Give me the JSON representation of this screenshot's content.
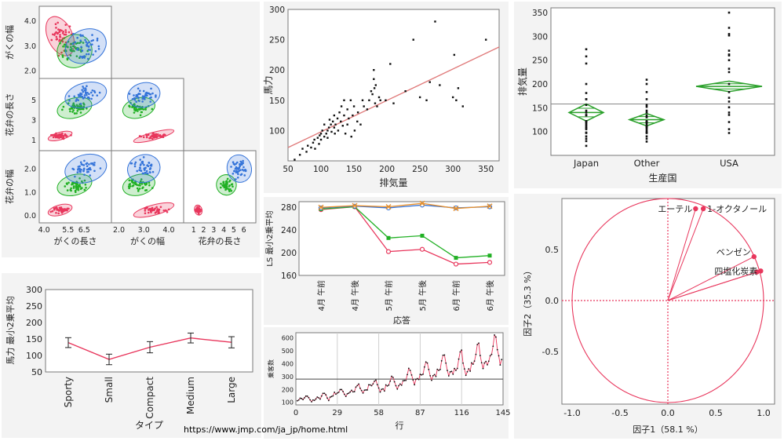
{
  "source_url": "https://www.jmp.com/ja_jp/home.html",
  "colors": {
    "red": "#e8365c",
    "green": "#21b024",
    "blue": "#3574d9",
    "fitline": "#e07a7a",
    "diamond": "#2aa02a",
    "orange": "#e8902c"
  },
  "chart_data": [
    {
      "id": "scatter-matrix",
      "type": "scatter",
      "cells": [
        {
          "row": 0,
          "col": 0,
          "x_var": "がくの長さ",
          "y_var": "がくの幅",
          "series": [
            {
              "color": "red",
              "cx": 5.0,
              "cy": 3.4,
              "sx": 0.35,
              "sy": 0.38,
              "n": 45
            },
            {
              "color": "green",
              "cx": 5.9,
              "cy": 2.8,
              "sx": 0.5,
              "sy": 0.3,
              "n": 45
            },
            {
              "color": "blue",
              "cx": 6.6,
              "cy": 3.0,
              "sx": 0.6,
              "sy": 0.3,
              "n": 45
            }
          ]
        },
        {
          "row": 1,
          "col": 0,
          "x_var": "がくの長さ",
          "y_var": "花弁の長さ",
          "series": [
            {
              "color": "red",
              "cx": 5.0,
              "cy": 1.46,
              "sx": 0.35,
              "sy": 0.17,
              "n": 45
            },
            {
              "color": "green",
              "cx": 5.9,
              "cy": 4.26,
              "sx": 0.5,
              "sy": 0.45,
              "n": 45
            },
            {
              "color": "blue",
              "cx": 6.6,
              "cy": 5.55,
              "sx": 0.6,
              "sy": 0.55,
              "n": 45
            }
          ]
        },
        {
          "row": 1,
          "col": 1,
          "x_var": "がくの幅",
          "y_var": "花弁の長さ",
          "series": [
            {
              "color": "red",
              "cx": 3.4,
              "cy": 1.46,
              "sx": 0.38,
              "sy": 0.17,
              "n": 45
            },
            {
              "color": "green",
              "cx": 2.8,
              "cy": 4.26,
              "sx": 0.3,
              "sy": 0.45,
              "n": 45
            },
            {
              "color": "blue",
              "cx": 3.0,
              "cy": 5.55,
              "sx": 0.3,
              "sy": 0.55,
              "n": 45
            }
          ]
        },
        {
          "row": 2,
          "col": 0,
          "x_var": "がくの長さ",
          "y_var": "花弁の幅",
          "series": [
            {
              "color": "red",
              "cx": 5.0,
              "cy": 0.25,
              "sx": 0.35,
              "sy": 0.1,
              "n": 45
            },
            {
              "color": "green",
              "cx": 5.9,
              "cy": 1.33,
              "sx": 0.5,
              "sy": 0.2,
              "n": 45
            },
            {
              "color": "blue",
              "cx": 6.6,
              "cy": 2.03,
              "sx": 0.6,
              "sy": 0.27,
              "n": 45
            }
          ]
        },
        {
          "row": 2,
          "col": 1,
          "x_var": "がくの幅",
          "y_var": "花弁の幅",
          "series": [
            {
              "color": "red",
              "cx": 3.4,
              "cy": 0.25,
              "sx": 0.38,
              "sy": 0.1,
              "n": 45
            },
            {
              "color": "green",
              "cx": 2.8,
              "cy": 1.33,
              "sx": 0.3,
              "sy": 0.2,
              "n": 45
            },
            {
              "color": "blue",
              "cx": 3.0,
              "cy": 2.03,
              "sx": 0.3,
              "sy": 0.27,
              "n": 45
            }
          ]
        },
        {
          "row": 2,
          "col": 2,
          "x_var": "花弁の長さ",
          "y_var": "花弁の幅",
          "series": [
            {
              "color": "red",
              "cx": 1.46,
              "cy": 0.25,
              "sx": 0.17,
              "sy": 0.1,
              "n": 45
            },
            {
              "color": "green",
              "cx": 4.26,
              "cy": 1.33,
              "sx": 0.45,
              "sy": 0.2,
              "n": 45
            },
            {
              "color": "blue",
              "cx": 5.55,
              "cy": 2.03,
              "sx": 0.55,
              "sy": 0.27,
              "n": 45
            }
          ]
        }
      ],
      "col_vars": [
        "がくの長さ",
        "がくの幅",
        "花弁の長さ"
      ],
      "row_vars": [
        "がくの幅",
        "花弁の長さ",
        "花弁の幅"
      ],
      "ranges": {
        "がくの長さ": [
          3.7,
          8.2
        ],
        "がくの幅": [
          1.7,
          4.6
        ],
        "花弁の長さ": [
          0,
          7.2
        ],
        "花弁の幅": [
          -0.3,
          2.8
        ]
      },
      "col_ticks": [
        [
          "4.0",
          "5.5",
          "6.5"
        ],
        [
          "2.0",
          "3.0",
          "4.0"
        ],
        [
          "1",
          "2",
          "3",
          "4",
          "5",
          "6"
        ]
      ],
      "col_tick_values": [
        [
          4.0,
          5.5,
          6.5
        ],
        [
          2.0,
          3.0,
          4.0
        ],
        [
          1,
          2,
          3,
          4,
          5,
          6
        ]
      ],
      "row_ticks": [
        [
          "4.0",
          "3.0",
          "2.0"
        ],
        [
          "5",
          "3",
          "1"
        ],
        [
          "2.0",
          "1.0",
          "0.0"
        ]
      ],
      "row_tick_values": [
        [
          4.0,
          3.0,
          2.0
        ],
        [
          5,
          3,
          1
        ],
        [
          2.0,
          1.0,
          0.0
        ]
      ]
    },
    {
      "id": "hp-vs-displacement",
      "type": "scatter",
      "xlabel": "排気量",
      "ylabel": "馬力",
      "xlim": [
        50,
        370
      ],
      "ylim": [
        50,
        300
      ],
      "xticks": [
        50,
        100,
        150,
        200,
        250,
        300,
        350
      ],
      "yticks": [
        100,
        150,
        200,
        250,
        300
      ],
      "fit_line": [
        [
          50,
          72
        ],
        [
          370,
          238
        ]
      ],
      "points": [
        [
          60,
          52
        ],
        [
          68,
          60
        ],
        [
          72,
          70
        ],
        [
          78,
          65
        ],
        [
          80,
          75
        ],
        [
          85,
          72
        ],
        [
          88,
          80
        ],
        [
          90,
          85
        ],
        [
          91,
          70
        ],
        [
          95,
          88
        ],
        [
          97,
          78
        ],
        [
          98,
          92
        ],
        [
          100,
          95
        ],
        [
          100,
          85
        ],
        [
          102,
          100
        ],
        [
          105,
          90
        ],
        [
          105,
          110
        ],
        [
          108,
          95
        ],
        [
          110,
          100
        ],
        [
          110,
          88
        ],
        [
          112,
          105
        ],
        [
          113,
          118
        ],
        [
          115,
          110
        ],
        [
          116,
          98
        ],
        [
          118,
          115
        ],
        [
          120,
          125
        ],
        [
          120,
          105
        ],
        [
          121,
          95
        ],
        [
          122,
          110
        ],
        [
          125,
          120
        ],
        [
          126,
          100
        ],
        [
          128,
          130
        ],
        [
          130,
          115
        ],
        [
          131,
          140
        ],
        [
          133,
          108
        ],
        [
          135,
          125
        ],
        [
          135,
          150
        ],
        [
          137,
          95
        ],
        [
          140,
          135
        ],
        [
          140,
          110
        ],
        [
          142,
          120
        ],
        [
          145,
          150
        ],
        [
          146,
          90
        ],
        [
          148,
          125
        ],
        [
          150,
          140
        ],
        [
          151,
          100
        ],
        [
          155,
          115
        ],
        [
          156,
          130
        ],
        [
          160,
          110
        ],
        [
          163,
          150
        ],
        [
          165,
          140
        ],
        [
          170,
          135
        ],
        [
          173,
          150
        ],
        [
          176,
          165
        ],
        [
          178,
          160
        ],
        [
          180,
          185
        ],
        [
          180,
          200
        ],
        [
          181,
          170
        ],
        [
          182,
          145
        ],
        [
          183,
          175
        ],
        [
          185,
          140
        ],
        [
          188,
          155
        ],
        [
          190,
          150
        ],
        [
          198,
          150
        ],
        [
          205,
          210
        ],
        [
          210,
          145
        ],
        [
          228,
          165
        ],
        [
          240,
          250
        ],
        [
          250,
          155
        ],
        [
          260,
          150
        ],
        [
          265,
          180
        ],
        [
          273,
          280
        ],
        [
          280,
          175
        ],
        [
          300,
          155
        ],
        [
          302,
          225
        ],
        [
          305,
          150
        ],
        [
          308,
          170
        ],
        [
          315,
          140
        ],
        [
          350,
          250
        ]
      ]
    },
    {
      "id": "displacement-by-origin",
      "type": "scatter",
      "xlabel": "生産国",
      "ylabel": "排気量",
      "categories": [
        "Japan",
        "Other",
        "USA"
      ],
      "ylim": [
        50,
        360
      ],
      "yticks": [
        100,
        150,
        200,
        250,
        300,
        350
      ],
      "grand_mean": 158,
      "means": [
        140,
        125,
        195
      ],
      "ci": [
        [
          122,
          158
        ],
        [
          112,
          138
        ],
        [
          184,
          206
        ]
      ],
      "points": [
        [
          70,
          80,
          85,
          90,
          97,
          98,
          105,
          107,
          110,
          113,
          116,
          119,
          121,
          122,
          134,
          135,
          140,
          144,
          156,
          168,
          168,
          181,
          200,
          243,
          258,
          273
        ],
        [
          79,
          85,
          90,
          97,
          98,
          101,
          105,
          108,
          110,
          112,
          116,
          119,
          120,
          121,
          122,
          130,
          131,
          134,
          140,
          144,
          152,
          156,
          168,
          183,
          200,
          209
        ],
        [
          97,
          105,
          120,
          135,
          140,
          151,
          163,
          171,
          183,
          200,
          225,
          232,
          250,
          260,
          262,
          270,
          302,
          305,
          318,
          350
        ]
      ]
    },
    {
      "id": "lsmeans-by-type",
      "type": "line",
      "xlabel": "タイプ",
      "ylabel": "馬力 最小2乗平均",
      "categories": [
        "Sporty",
        "Small",
        "Compact",
        "Medium",
        "Large"
      ],
      "values": [
        139,
        88,
        125,
        153,
        140
      ],
      "errors": [
        [
          124,
          154
        ],
        [
          72,
          104
        ],
        [
          108,
          142
        ],
        [
          138,
          168
        ],
        [
          123,
          157
        ]
      ],
      "ylim": [
        50,
        300
      ],
      "yticks": [
        50,
        100,
        150,
        200,
        250,
        300
      ]
    },
    {
      "id": "repeated-measures",
      "type": "line",
      "xlabel": "応答",
      "ylabel": "LS 最小2乗平均",
      "categories": [
        "4月 午前",
        "4月 午後",
        "5月 午前",
        "5月 午後",
        "6月 午前",
        "6月 午後"
      ],
      "ylim": [
        160,
        290
      ],
      "yticks": [
        160,
        200,
        240,
        280
      ],
      "series": [
        {
          "color": "red",
          "values": [
            276,
            281,
            202,
            206,
            180,
            183
          ]
        },
        {
          "color": "green",
          "values": [
            277,
            281,
            226,
            230,
            191,
            195
          ]
        },
        {
          "color": "blue",
          "values": [
            279,
            282,
            279,
            284,
            279,
            281
          ]
        },
        {
          "color": "orange",
          "values": [
            280,
            283,
            281,
            287,
            278,
            282
          ]
        }
      ]
    },
    {
      "id": "passengers-timeseries",
      "type": "line",
      "xlabel": "行",
      "ylabel": "乗客数",
      "xlim": [
        0,
        145
      ],
      "ylim": [
        80,
        640
      ],
      "xticks": [
        0,
        29,
        58,
        87,
        116,
        145
      ],
      "yticks": [
        100,
        200,
        300,
        400,
        500,
        600
      ],
      "mean_line": 280,
      "values": [
        112,
        118,
        132,
        129,
        121,
        135,
        148,
        148,
        136,
        119,
        104,
        118,
        115,
        126,
        141,
        135,
        125,
        149,
        170,
        170,
        158,
        133,
        114,
        140,
        145,
        150,
        178,
        163,
        172,
        178,
        199,
        199,
        184,
        162,
        146,
        166,
        171,
        180,
        193,
        181,
        183,
        218,
        230,
        242,
        209,
        191,
        172,
        194,
        196,
        196,
        236,
        235,
        229,
        243,
        264,
        272,
        237,
        211,
        180,
        201,
        204,
        188,
        235,
        227,
        234,
        264,
        302,
        293,
        259,
        229,
        203,
        229,
        242,
        233,
        267,
        269,
        270,
        315,
        364,
        347,
        312,
        274,
        237,
        278,
        284,
        277,
        317,
        313,
        318,
        374,
        413,
        405,
        355,
        306,
        271,
        306,
        315,
        301,
        356,
        348,
        355,
        422,
        465,
        467,
        404,
        347,
        305,
        336,
        340,
        318,
        362,
        348,
        363,
        435,
        491,
        505,
        404,
        359,
        310,
        337,
        360,
        342,
        406,
        396,
        420,
        472,
        548,
        559,
        463,
        407,
        362,
        405,
        417,
        391,
        419,
        461,
        472,
        535,
        622,
        606,
        508,
        461,
        390,
        432
      ]
    },
    {
      "id": "factor-loadings",
      "type": "scatter",
      "xlabel": "因子1（58.1 %）",
      "ylabel": "因子2（35.3 %）",
      "xlim": [
        -1.1,
        1.1
      ],
      "ylim": [
        -1.1,
        1.1
      ],
      "xticks": [
        "-1.0",
        "-0.5",
        "0.0",
        "0.5",
        "1.0"
      ],
      "xtick_values": [
        -1.0,
        -0.5,
        0.0,
        0.5,
        1.0
      ],
      "yticks": [
        "0.5",
        "0.0",
        "-0.5"
      ],
      "ytick_values": [
        0.5,
        0.0,
        -0.5
      ],
      "loadings": [
        {
          "label": "エーテル",
          "x": 0.29,
          "y": 0.9
        },
        {
          "label": "1-オクタノール",
          "x": 0.37,
          "y": 0.9
        },
        {
          "label": "ベンゼン",
          "x": 0.9,
          "y": 0.43
        },
        {
          "label": "四塩化炭素",
          "x": 0.97,
          "y": 0.29
        },
        {
          "label": "",
          "x": 0.93,
          "y": 0.28
        }
      ]
    }
  ]
}
